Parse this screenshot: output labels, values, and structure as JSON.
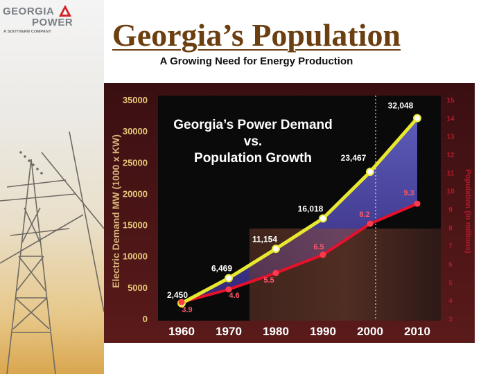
{
  "logo": {
    "line1": "GEORGIA",
    "line2": "POWER",
    "tagline": "A SOUTHERN COMPANY"
  },
  "header": {
    "title": "Georgia’s Population",
    "subtitle": "A Growing Need for Energy Production"
  },
  "colors": {
    "title": "#6b3f10",
    "demand_line": "#e8e830",
    "population_line": "#e8102a",
    "left_axis_text": "#e8c87a",
    "right_axis_text": "#b01a2a",
    "ylabel_text": "#d8b37a"
  },
  "chart_data": {
    "type": "line",
    "title_lines": [
      "Georgia’s Power Demand",
      "vs.",
      "Population Growth"
    ],
    "x": [
      1960,
      1970,
      1980,
      1990,
      2000,
      2010
    ],
    "x_tick_labels": [
      "1960",
      "1970",
      "1980",
      "1990",
      "2000",
      "2010"
    ],
    "ylabel": "Electric Demand  MW (1000 x KW)",
    "ylabel2": "Population (in millions)",
    "ylim": [
      0,
      35000
    ],
    "ylim2": [
      3,
      15
    ],
    "y_ticks": [
      "0",
      "5000",
      "10000",
      "15000",
      "20000",
      "25000",
      "30000",
      "35000"
    ],
    "y2_ticks": [
      "3",
      "4",
      "5",
      "6",
      "7",
      "8",
      "9",
      "10",
      "11",
      "12",
      "13",
      "14",
      "15"
    ],
    "series": [
      {
        "axis": "left",
        "values": [
          2450,
          6469,
          11154,
          16018,
          23467,
          32048
        ],
        "labels": [
          "2,450",
          "6,469",
          "11,154",
          "16,018",
          "23,467",
          "32,048"
        ]
      },
      {
        "axis": "right",
        "values": [
          3.9,
          4.6,
          5.5,
          6.5,
          8.2,
          9.3
        ],
        "labels": [
          "3.9",
          "4.6",
          "5.5",
          "6.5",
          "8.2",
          "9.3"
        ]
      }
    ],
    "grid": false,
    "legend": "none"
  }
}
